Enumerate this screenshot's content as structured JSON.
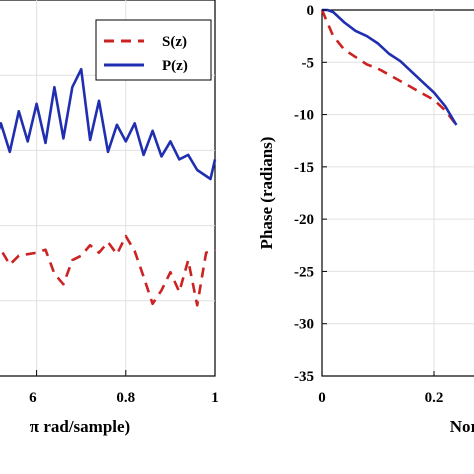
{
  "chart_data": [
    {
      "type": "line",
      "xlabel_visible": "π rad/sample)",
      "xlim": [
        0.5,
        1.0
      ],
      "x_ticks": [
        "6",
        "0.8",
        "1"
      ],
      "grid": true,
      "legend": {
        "placement": "top-right",
        "entries": [
          "S(z)",
          "P(z)"
        ]
      },
      "series": [
        {
          "name": "S(z)",
          "style": "dashed",
          "color": "#cc2222",
          "x": [
            0.5,
            0.52,
            0.54,
            0.56,
            0.58,
            0.6,
            0.62,
            0.64,
            0.66,
            0.68,
            0.7,
            0.72,
            0.74,
            0.76,
            0.78,
            0.8,
            0.82,
            0.84,
            0.86,
            0.88,
            0.9,
            0.92,
            0.94,
            0.96,
            0.98,
            1.0
          ],
          "y": [
            -17.3,
            -16.6,
            -17.6,
            -17.0,
            -16.9,
            -16.8,
            -16.6,
            -18.2,
            -18.9,
            -17.3,
            -17.0,
            -16.3,
            -16.8,
            -16.1,
            -16.9,
            -15.7,
            -16.7,
            -18.4,
            -20.2,
            -19.3,
            -18.1,
            -19.4,
            -17.3,
            -20.3,
            -16.8,
            -16.6
          ]
        },
        {
          "name": "P(z)",
          "style": "solid",
          "color": "#1f2fb0",
          "x": [
            0.5,
            0.52,
            0.54,
            0.56,
            0.58,
            0.6,
            0.62,
            0.64,
            0.66,
            0.68,
            0.7,
            0.72,
            0.74,
            0.76,
            0.78,
            0.8,
            0.82,
            0.84,
            0.86,
            0.88,
            0.9,
            0.92,
            0.94,
            0.96,
            0.98,
            0.99,
            1.0
          ],
          "y": [
            -10.0,
            -8.2,
            -10.1,
            -7.4,
            -9.4,
            -6.9,
            -9.5,
            -5.8,
            -9.2,
            -5.8,
            -4.6,
            -9.3,
            -6.7,
            -10.1,
            -8.3,
            -9.4,
            -8.2,
            -10.3,
            -8.7,
            -10.4,
            -9.4,
            -10.6,
            -10.3,
            -11.3,
            -11.7,
            -11.9,
            -10.6
          ]
        }
      ]
    },
    {
      "type": "line",
      "ylabel": "Phase (radians)",
      "xlabel_visible": "Normali",
      "ylim": [
        -35,
        0
      ],
      "y_ticks": [
        "0",
        "-5",
        "-10",
        "-15",
        "-20",
        "-25",
        "-30",
        "-35"
      ],
      "x_ticks": [
        "0",
        "0.2"
      ],
      "grid": true,
      "series": [
        {
          "name": "S(z)",
          "style": "dashed",
          "color": "#cc2222",
          "x": [
            0,
            0.02,
            0.04,
            0.06,
            0.08,
            0.1,
            0.12,
            0.14,
            0.16,
            0.18,
            0.2,
            0.22,
            0.24
          ],
          "y": [
            0,
            -2.5,
            -3.8,
            -4.5,
            -5.2,
            -5.6,
            -6.2,
            -6.8,
            -7.4,
            -8.0,
            -8.6,
            -9.6,
            -11.0
          ]
        },
        {
          "name": "P(z)",
          "style": "solid",
          "color": "#1f2fb0",
          "x": [
            0,
            0.01,
            0.02,
            0.04,
            0.06,
            0.08,
            0.1,
            0.12,
            0.14,
            0.16,
            0.18,
            0.2,
            0.22,
            0.24
          ],
          "y": [
            0,
            0,
            -0.2,
            -1.2,
            -2.0,
            -2.5,
            -3.2,
            -4.2,
            -4.9,
            -5.9,
            -6.9,
            -7.9,
            -9.2,
            -11.0
          ]
        }
      ]
    }
  ]
}
